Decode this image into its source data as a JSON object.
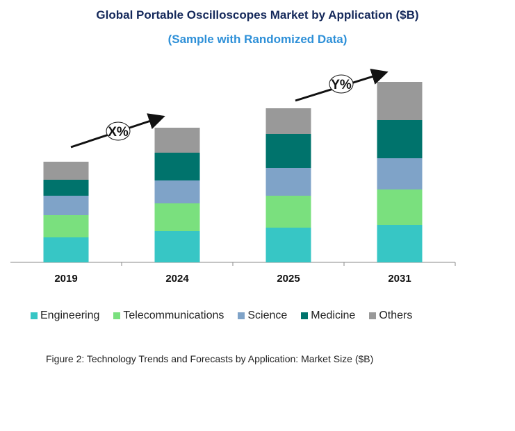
{
  "chart_data": {
    "type": "bar",
    "stacked": true,
    "title": "Global Portable Oscilloscopes Market by Application ($B)",
    "subtitle": "(Sample with Randomized Data)",
    "categories": [
      "2019",
      "2024",
      "2025",
      "2031"
    ],
    "series": [
      {
        "name": "Engineering",
        "color": "#37C6C5",
        "values": [
          3.6,
          4.5,
          5.0,
          5.4
        ]
      },
      {
        "name": "Telecommunications",
        "color": "#7AE07E",
        "values": [
          3.2,
          4.0,
          4.6,
          5.1
        ]
      },
      {
        "name": "Science",
        "color": "#7FA3C8",
        "values": [
          2.8,
          3.3,
          4.0,
          4.5
        ]
      },
      {
        "name": "Medicine",
        "color": "#00736C",
        "values": [
          2.3,
          4.0,
          4.9,
          5.5
        ]
      },
      {
        "name": "Others",
        "color": "#999999",
        "values": [
          2.6,
          3.6,
          3.7,
          5.5
        ]
      }
    ],
    "annotations": [
      {
        "label": "X%",
        "from": "2019",
        "to": "2024"
      },
      {
        "label": "Y%",
        "from": "2025",
        "to": "2031"
      }
    ],
    "yaxis_visible": false,
    "grid": false,
    "legend_placement": "bottom",
    "caption": "Figure 2: Technology  Trends  and Forecasts by Application: Market Size ($B)"
  }
}
